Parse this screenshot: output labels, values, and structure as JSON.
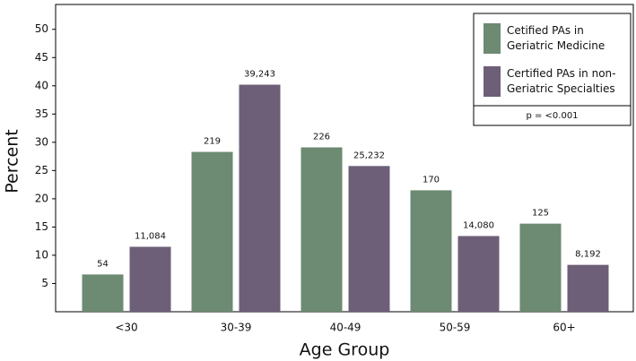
{
  "chart_data": {
    "type": "grouped-bar",
    "xlabel": "Age Group",
    "ylabel": "Percent",
    "categories": [
      "<30",
      "30-39",
      "40-49",
      "50-59",
      "60+"
    ],
    "series": [
      {
        "name": "Cetified PAs in Geriatric Medicine",
        "color": "#6d8a72",
        "values": [
          6.6,
          28.3,
          29.1,
          21.5,
          15.6
        ],
        "count_labels": [
          "54",
          "219",
          "226",
          "170",
          "125"
        ]
      },
      {
        "name": "Certified PAs in non-Geriatric Specialties",
        "color": "#6d5f78",
        "values": [
          11.5,
          40.2,
          25.8,
          13.4,
          8.3
        ],
        "count_labels": [
          "11,084",
          "39,243",
          "25,232",
          "14,080",
          "8,192"
        ]
      }
    ],
    "annotation": "p = <0.001",
    "ylim": [
      0,
      54.4
    ],
    "yticks": [
      5,
      10,
      15,
      20,
      25,
      30,
      35,
      40,
      45,
      50
    ],
    "legend": "top-right"
  }
}
